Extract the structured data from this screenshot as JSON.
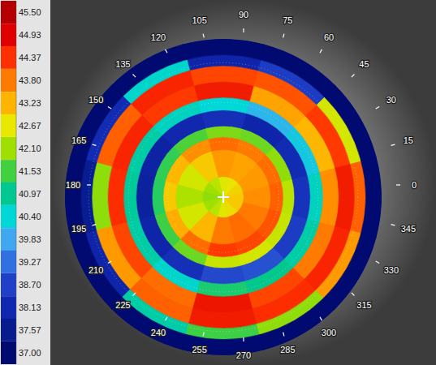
{
  "chart_data": {
    "type": "topography",
    "angle_ticks": [
      0,
      15,
      30,
      45,
      60,
      75,
      90,
      105,
      120,
      135,
      150,
      165,
      180,
      195,
      210,
      225,
      240,
      255,
      270,
      285,
      300,
      315,
      330,
      345
    ],
    "rlim": [
      0,
      1
    ],
    "r_bins": [
      0,
      0.13,
      0.3,
      0.38,
      0.45,
      0.55,
      0.63,
      0.73,
      0.83,
      0.9,
      1
    ],
    "sectors": [
      0,
      30,
      60,
      90,
      120,
      150,
      180,
      210,
      240,
      270,
      300,
      330
    ],
    "values": [
      [
        43.0,
        42.9,
        42.7,
        42.6,
        42.3,
        42.1,
        42.0,
        42.1,
        42.3,
        42.6,
        42.8,
        43.0
      ],
      [
        43.6,
        43.5,
        43.4,
        43.5,
        43.0,
        42.5,
        42.2,
        42.5,
        43.2,
        43.8,
        43.9,
        43.8
      ],
      [
        44.0,
        43.9,
        43.8,
        43.9,
        43.6,
        43.2,
        43.0,
        43.3,
        43.9,
        44.3,
        44.2,
        44.1
      ],
      [
        42.3,
        42.0,
        41.8,
        41.9,
        41.6,
        41.4,
        41.3,
        41.5,
        41.8,
        42.4,
        42.5,
        42.4
      ],
      [
        38.4,
        38.2,
        38.0,
        38.3,
        38.1,
        37.9,
        37.8,
        38.0,
        38.3,
        38.8,
        38.9,
        38.6
      ],
      [
        40.6,
        40.2,
        40.0,
        40.4,
        40.6,
        40.8,
        40.9,
        40.8,
        40.5,
        41.2,
        41.0,
        40.8
      ],
      [
        43.6,
        43.2,
        43.4,
        44.6,
        44.3,
        44.5,
        44.4,
        44.2,
        43.9,
        44.7,
        44.2,
        43.8
      ],
      [
        44.6,
        44.3,
        44.1,
        44.2,
        44.5,
        44.0,
        42.0,
        43.5,
        44.0,
        44.6,
        44.4,
        44.5
      ],
      [
        44.0,
        42.5,
        38.6,
        38.0,
        40.5,
        38.2,
        37.6,
        38.0,
        40.8,
        41.5,
        42.0,
        43.5
      ],
      [
        37.0,
        37.0,
        37.0,
        37.0,
        37.0,
        37.0,
        37.0,
        37.0,
        37.0,
        37.0,
        37.0,
        37.0
      ]
    ],
    "colorbar": {
      "range": [
        37,
        45.5
      ],
      "ticks": [
        {
          "value": 45.5,
          "label": "45.50"
        },
        44.93,
        44.37,
        {
          "value": 43.8,
          "label": "43.80"
        },
        43.23,
        42.67,
        {
          "value": 42.1,
          "label": "42.10"
        },
        41.53,
        40.97,
        {
          "value": 40.4,
          "label": "40.40"
        },
        39.83,
        39.27,
        {
          "value": 38.7,
          "label": "38.70"
        },
        38.13,
        37.57,
        {
          "value": 37,
          "label": "37.00"
        }
      ],
      "colors": [
        "#b40000",
        "#e00000",
        "#ff3000",
        "#ff7a00",
        "#ffb400",
        "#e8e800",
        "#a0e000",
        "#40d040",
        "#00c890",
        "#00d8d8",
        "#40a8f0",
        "#3070e0",
        "#2040c8",
        "#1028b0",
        "#081c90",
        "#000a70"
      ]
    }
  }
}
